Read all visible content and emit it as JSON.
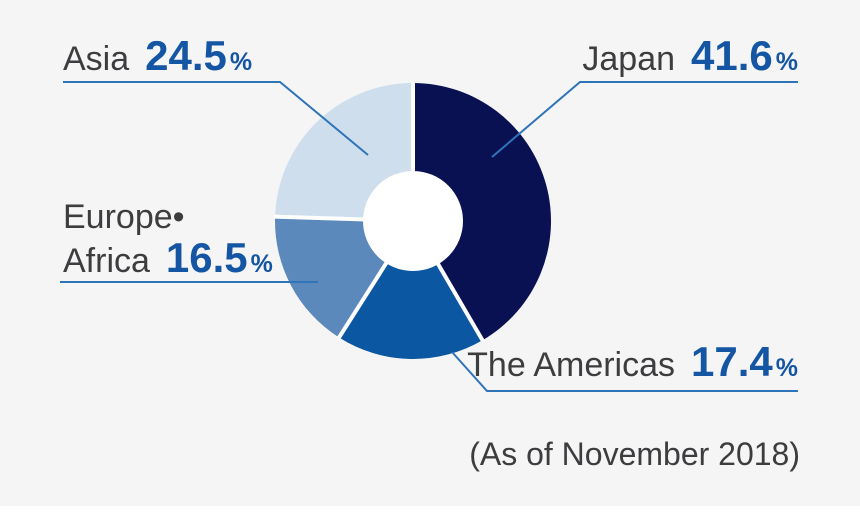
{
  "chart_data": {
    "type": "pie",
    "subtype": "donut",
    "title": "",
    "categories": [
      "Japan",
      "The Americas",
      "Europe•Africa",
      "Asia"
    ],
    "values": [
      41.6,
      17.4,
      16.5,
      24.5
    ],
    "unit": "%",
    "segment_colors": [
      "#0A1153",
      "#0C57A2",
      "#5B89BC",
      "#CEDEED"
    ],
    "start_angle": "12-oclock",
    "direction": "clockwise",
    "hole_ratio": 0.35,
    "legend_position": "callouts-with-leader-lines",
    "note": "(As of November 2018)"
  },
  "callouts": {
    "japan": {
      "name": "Japan",
      "value": "41.6",
      "unit": "%"
    },
    "asia": {
      "name": "Asia",
      "value": "24.5",
      "unit": "%"
    },
    "europe_africa": {
      "name_line1": "Europe•",
      "name_line2": "Africa",
      "value": "16.5",
      "unit": "%"
    },
    "americas": {
      "name": "The Americas",
      "value": "17.4",
      "unit": "%"
    }
  },
  "note": "(As of November 2018)",
  "colors": {
    "background": "#F5F5F6",
    "label_text": "#3D3D3F",
    "value_text": "#1456A4",
    "leader_line": "#2E74B8",
    "separator": "#FFFFFF",
    "hole": "#FFFFFF"
  }
}
